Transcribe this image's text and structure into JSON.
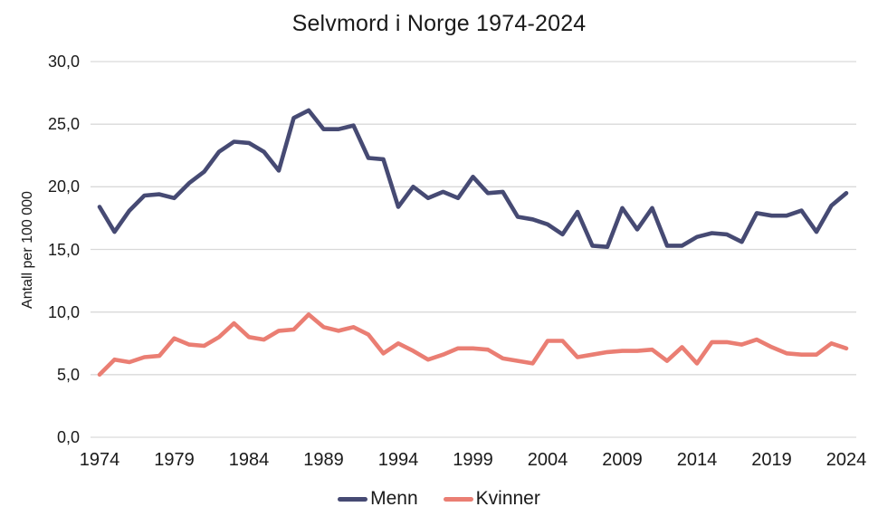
{
  "title": "Selvmord i Norge 1974-2024",
  "chart_data": {
    "type": "line",
    "title": "Selvmord i Norge 1974-2024",
    "xlabel": "",
    "ylabel": "Antall per 100 000",
    "ylim": [
      0,
      30
    ],
    "grid": "horizontal",
    "legend_position": "bottom",
    "gridline_color": "#d9d9d9",
    "text_color": "#1a1a1a",
    "background": "#ffffff",
    "x": [
      1974,
      1975,
      1976,
      1977,
      1978,
      1979,
      1980,
      1981,
      1982,
      1983,
      1984,
      1985,
      1986,
      1987,
      1988,
      1989,
      1990,
      1991,
      1992,
      1993,
      1994,
      1995,
      1996,
      1997,
      1998,
      1999,
      2000,
      2001,
      2002,
      2003,
      2004,
      2005,
      2006,
      2007,
      2008,
      2009,
      2010,
      2011,
      2012,
      2013,
      2014,
      2015,
      2016,
      2017,
      2018,
      2019,
      2020,
      2021,
      2022,
      2023,
      2024
    ],
    "xticks": [
      1974,
      1979,
      1984,
      1989,
      1994,
      1999,
      2004,
      2009,
      2014,
      2019,
      2024
    ],
    "yticks": {
      "values": [
        0,
        5,
        10,
        15,
        20,
        25,
        30
      ],
      "labels": [
        "0,0",
        "5,0",
        "10,0",
        "15,0",
        "20,0",
        "25,0",
        "30,0"
      ]
    },
    "series": [
      {
        "name": "Menn",
        "color": "#464a73",
        "values": [
          18.4,
          16.4,
          18.1,
          19.3,
          19.4,
          19.1,
          20.3,
          21.2,
          22.8,
          23.6,
          23.5,
          22.8,
          21.3,
          25.5,
          26.1,
          24.6,
          24.6,
          24.9,
          22.3,
          22.2,
          18.4,
          20.0,
          19.1,
          19.6,
          19.1,
          20.8,
          19.5,
          19.6,
          17.6,
          17.4,
          17.0,
          16.2,
          18.0,
          15.3,
          15.2,
          18.3,
          16.6,
          18.3,
          15.3,
          15.3,
          16.0,
          16.3,
          16.2,
          15.6,
          17.9,
          17.7,
          17.7,
          18.1,
          16.4,
          18.5,
          19.5
        ]
      },
      {
        "name": "Kvinner",
        "color": "#ea7e73",
        "values": [
          5.0,
          6.2,
          6.0,
          6.4,
          6.5,
          7.9,
          7.4,
          7.3,
          8.0,
          9.1,
          8.0,
          7.8,
          8.5,
          8.6,
          9.8,
          8.8,
          8.5,
          8.8,
          8.2,
          6.7,
          7.5,
          6.9,
          6.2,
          6.6,
          7.1,
          7.1,
          7.0,
          6.3,
          6.1,
          5.9,
          7.7,
          7.7,
          6.4,
          6.6,
          6.8,
          6.9,
          6.9,
          7.0,
          6.1,
          7.2,
          5.9,
          7.6,
          7.6,
          7.4,
          7.8,
          7.2,
          6.7,
          6.6,
          6.6,
          7.5,
          7.1
        ]
      }
    ]
  },
  "legend": {
    "items": [
      {
        "label": "Menn",
        "color": "#464a73"
      },
      {
        "label": "Kvinner",
        "color": "#ea7e73"
      }
    ]
  }
}
